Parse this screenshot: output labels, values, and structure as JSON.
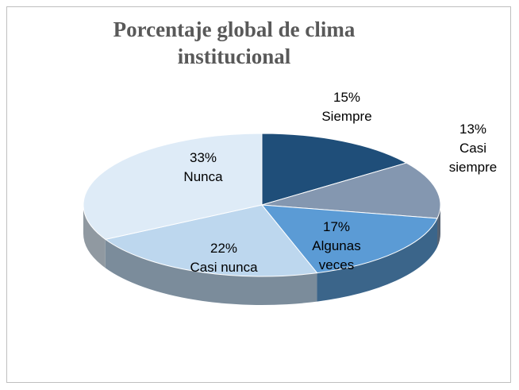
{
  "chart_data": {
    "type": "pie3d",
    "title": "Porcentaje global de clima institucional",
    "categories": [
      "Siempre",
      "Casi siempre",
      "Algunas veces",
      "Casi nunca",
      "Nunca"
    ],
    "values": [
      15,
      13,
      17,
      22,
      33
    ],
    "value_labels": [
      "15%",
      "13%",
      "17%",
      "22%",
      "33%"
    ],
    "colors": [
      "#1f4e79",
      "#8497b0",
      "#5b9bd5",
      "#bdd7ee",
      "#deebf7"
    ]
  }
}
